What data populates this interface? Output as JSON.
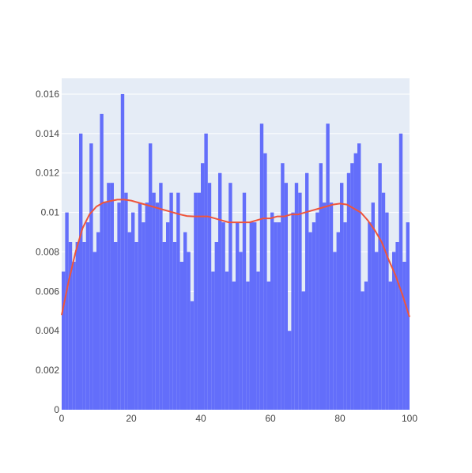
{
  "chart_data": {
    "type": "bar",
    "x_range": [
      0,
      100
    ],
    "y_range": [
      0,
      0.0168
    ],
    "bin_width": 1,
    "x_ticks": [
      0,
      20,
      40,
      60,
      80,
      100
    ],
    "x_tick_labels": [
      "0",
      "20",
      "40",
      "60",
      "80",
      "100"
    ],
    "y_ticks": [
      0,
      0.002,
      0.004,
      0.006,
      0.008,
      0.01,
      0.012,
      0.014,
      0.016
    ],
    "y_tick_labels": [
      "0",
      "0.002",
      "0.004",
      "0.006",
      "0.008",
      "0.01",
      "0.012",
      "0.014",
      "0.016"
    ],
    "grid": true,
    "colors": {
      "bars": "#636efa",
      "curve": "#ef553b",
      "plot_background": "#e5ecf6",
      "gridline": "#ffffff"
    },
    "bar_values": [
      0.007,
      0.01,
      0.0085,
      0.0075,
      0.0085,
      0.014,
      0.0085,
      0.0095,
      0.0135,
      0.008,
      0.009,
      0.015,
      0.0105,
      0.0115,
      0.0115,
      0.0085,
      0.0105,
      0.016,
      0.011,
      0.009,
      0.01,
      0.0085,
      0.0105,
      0.0095,
      0.0105,
      0.0135,
      0.011,
      0.0105,
      0.0115,
      0.0085,
      0.0095,
      0.011,
      0.0085,
      0.011,
      0.0075,
      0.009,
      0.008,
      0.0055,
      0.011,
      0.011,
      0.0125,
      0.014,
      0.0115,
      0.007,
      0.0085,
      0.012,
      0.0095,
      0.007,
      0.0115,
      0.0065,
      0.0095,
      0.008,
      0.011,
      0.0065,
      0.0095,
      0.0095,
      0.007,
      0.0145,
      0.013,
      0.0065,
      0.01,
      0.0095,
      0.0095,
      0.0125,
      0.0115,
      0.004,
      0.01,
      0.0115,
      0.011,
      0.006,
      0.012,
      0.009,
      0.0095,
      0.01,
      0.0125,
      0.0105,
      0.0145,
      0.0105,
      0.008,
      0.009,
      0.0115,
      0.0095,
      0.012,
      0.0125,
      0.013,
      0.0135,
      0.006,
      0.0065,
      0.0095,
      0.0105,
      0.008,
      0.0125,
      0.011,
      0.01,
      0.0065,
      0.008,
      0.0085,
      0.014,
      0.0075,
      0.0095
    ],
    "curve_points": [
      [
        0,
        0.0048
      ],
      [
        2,
        0.0065
      ],
      [
        4,
        0.008
      ],
      [
        6,
        0.0092
      ],
      [
        8,
        0.0099
      ],
      [
        10,
        0.0103
      ],
      [
        12,
        0.0105
      ],
      [
        14,
        0.01058
      ],
      [
        16,
        0.01065
      ],
      [
        18,
        0.01065
      ],
      [
        20,
        0.0106
      ],
      [
        22,
        0.0105
      ],
      [
        24,
        0.0104
      ],
      [
        26,
        0.0103
      ],
      [
        28,
        0.0102
      ],
      [
        30,
        0.0101
      ],
      [
        32,
        0.01
      ],
      [
        34,
        0.0099
      ],
      [
        36,
        0.00982
      ],
      [
        38,
        0.0098
      ],
      [
        40,
        0.0098
      ],
      [
        42,
        0.0098
      ],
      [
        44,
        0.0097
      ],
      [
        46,
        0.0096
      ],
      [
        48,
        0.0095
      ],
      [
        50,
        0.0095
      ],
      [
        52,
        0.0095
      ],
      [
        54,
        0.0095
      ],
      [
        56,
        0.0096
      ],
      [
        58,
        0.0097
      ],
      [
        60,
        0.0097
      ],
      [
        62,
        0.0098
      ],
      [
        64,
        0.0098
      ],
      [
        66,
        0.0099
      ],
      [
        68,
        0.0099
      ],
      [
        70,
        0.01
      ],
      [
        72,
        0.0101
      ],
      [
        74,
        0.0102
      ],
      [
        76,
        0.0103
      ],
      [
        78,
        0.0104
      ],
      [
        80,
        0.01045
      ],
      [
        82,
        0.0104
      ],
      [
        84,
        0.0102
      ],
      [
        86,
        0.01
      ],
      [
        88,
        0.0096
      ],
      [
        90,
        0.0091
      ],
      [
        92,
        0.0085
      ],
      [
        94,
        0.0076
      ],
      [
        96,
        0.0068
      ],
      [
        98,
        0.0058
      ],
      [
        100,
        0.0047
      ]
    ]
  }
}
